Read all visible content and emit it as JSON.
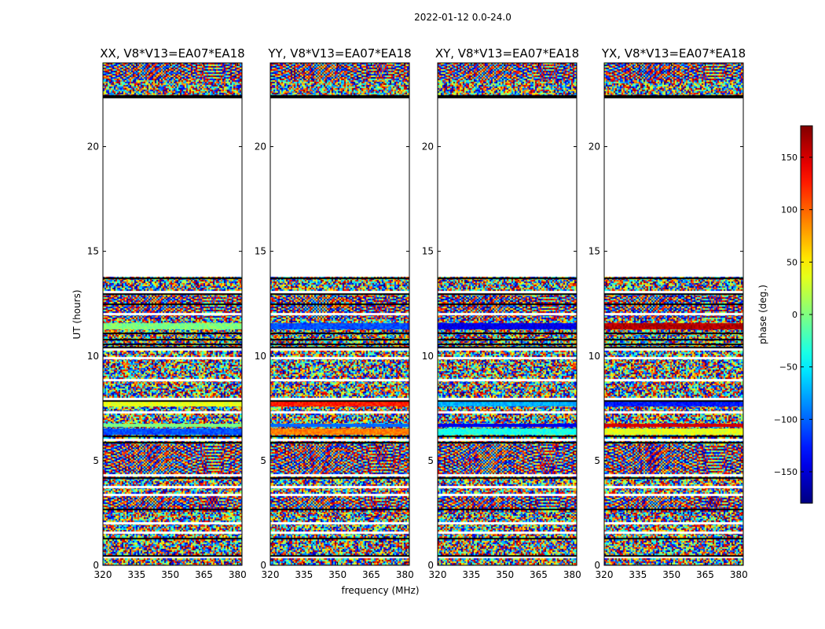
{
  "suptitle": "2022-01-12 0.0-24.0",
  "xlabel": "frequency (MHz)",
  "ylabel": "UT (hours)",
  "colorbar": {
    "label": "phase (deg.)",
    "range": [
      -180,
      180
    ],
    "ticks": [
      150,
      100,
      50,
      0,
      -50,
      -100,
      -150
    ],
    "tick_labels": [
      "150",
      "100",
      "50",
      "0",
      "−50",
      "−100",
      "−150"
    ],
    "colormap": "jet",
    "colors": [
      "#00007f",
      "#0000ff",
      "#007fff",
      "#00ffff",
      "#7fff7f",
      "#ffff00",
      "#ff7f00",
      "#ff0000",
      "#7f0000"
    ]
  },
  "chart_data": [
    {
      "type": "heatmap",
      "title": "XX, V8*V13=EA07*EA18",
      "polarization": "XX",
      "xlabel": "",
      "ylabel": "UT (hours)",
      "xlim": [
        320,
        382
      ],
      "ylim": [
        0,
        24
      ],
      "xticks": [
        320,
        335,
        350,
        365,
        380
      ],
      "yticks": [
        0,
        5,
        10,
        15,
        20
      ],
      "value": "phase (deg.)",
      "data_coverage_hours": [
        [
          0.0,
          13.8
        ],
        [
          22.4,
          24.0
        ]
      ],
      "gap_hours": [
        [
          13.8,
          22.4
        ]
      ]
    },
    {
      "type": "heatmap",
      "title": "YY, V8*V13=EA07*EA18",
      "polarization": "YY",
      "xlabel": "frequency (MHz)",
      "ylabel": "",
      "xlim": [
        320,
        382
      ],
      "ylim": [
        0,
        24
      ],
      "xticks": [
        320,
        335,
        350,
        365,
        380
      ],
      "yticks": [
        0,
        5,
        10,
        15,
        20
      ],
      "value": "phase (deg.)",
      "data_coverage_hours": [
        [
          0.0,
          13.8
        ],
        [
          22.4,
          24.0
        ]
      ],
      "gap_hours": [
        [
          13.8,
          22.4
        ]
      ]
    },
    {
      "type": "heatmap",
      "title": "XY, V8*V13=EA07*EA18",
      "polarization": "XY",
      "xlabel": "",
      "ylabel": "",
      "xlim": [
        320,
        382
      ],
      "ylim": [
        0,
        24
      ],
      "xticks": [
        320,
        335,
        350,
        365,
        380
      ],
      "yticks": [
        0,
        5,
        10,
        15,
        20
      ],
      "value": "phase (deg.)",
      "data_coverage_hours": [
        [
          0.0,
          13.8
        ],
        [
          22.4,
          24.0
        ]
      ],
      "gap_hours": [
        [
          13.8,
          22.4
        ]
      ]
    },
    {
      "type": "heatmap",
      "title": "YX, V8*V13=EA07*EA18",
      "polarization": "YX",
      "xlabel": "",
      "ylabel": "",
      "xlim": [
        320,
        382
      ],
      "ylim": [
        0,
        24
      ],
      "xticks": [
        320,
        335,
        350,
        365,
        380
      ],
      "yticks": [
        0,
        5,
        10,
        15,
        20
      ],
      "value": "phase (deg.)",
      "data_coverage_hours": [
        [
          0.0,
          13.8
        ],
        [
          22.4,
          24.0
        ]
      ],
      "gap_hours": [
        [
          13.8,
          22.4
        ]
      ]
    }
  ]
}
